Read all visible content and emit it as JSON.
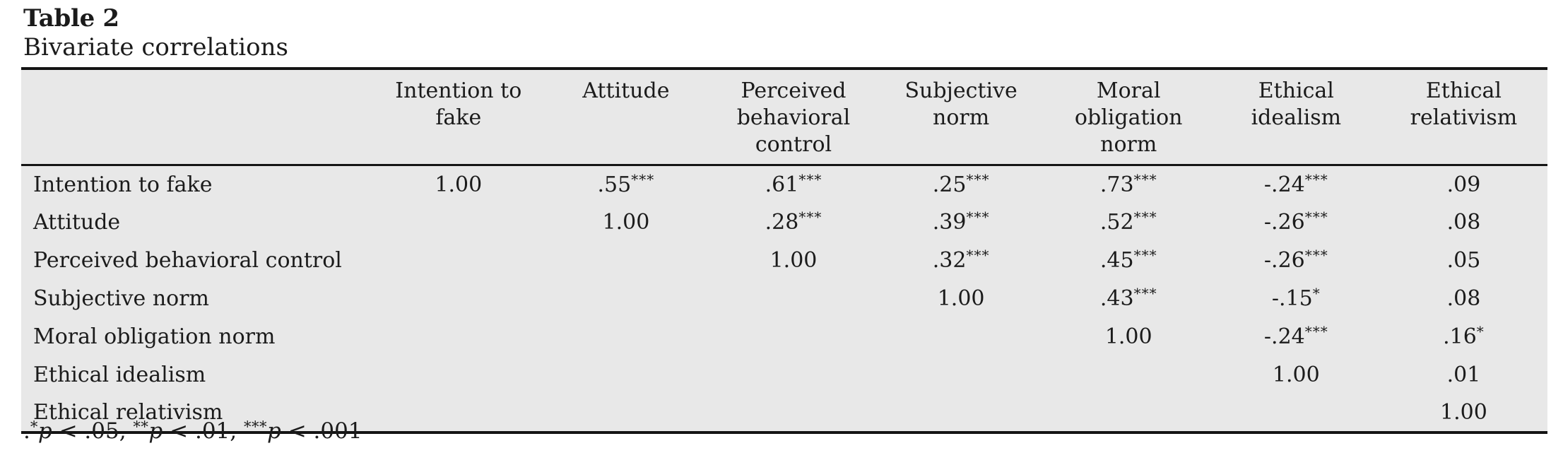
{
  "page": {
    "title": "Table 2",
    "subtitle": "Bivariate correlations"
  },
  "table": {
    "columns": [
      "",
      "Intention to fake",
      "Attitude",
      "Perceived behavioral control",
      "Subjective norm",
      "Moral obligation norm",
      "Ethical idealism",
      "Ethical relativism"
    ],
    "rows": [
      {
        "label": "Intention to fake",
        "values": [
          "1.00",
          ".55***",
          ".61***",
          ".25***",
          ".73***",
          "-.24***",
          ".09"
        ]
      },
      {
        "label": "Attitude",
        "values": [
          "",
          "1.00",
          ".28***",
          ".39***",
          ".52***",
          "-.26***",
          ".08"
        ]
      },
      {
        "label": "Perceived behavioral control",
        "values": [
          "",
          "",
          "1.00",
          ".32***",
          ".45***",
          "-.26***",
          ".05"
        ]
      },
      {
        "label": "Subjective norm",
        "values": [
          "",
          "",
          "",
          "1.00",
          ".43***",
          "-.15*",
          ".08"
        ]
      },
      {
        "label": "Moral obligation norm",
        "values": [
          "",
          "",
          "",
          "",
          "1.00",
          "-.24***",
          ".16*"
        ]
      },
      {
        "label": "Ethical idealism",
        "values": [
          "",
          "",
          "",
          "",
          "",
          "1.00",
          ".01"
        ]
      },
      {
        "label": "Ethical relativism",
        "values": [
          "",
          "",
          "",
          "",
          "",
          "",
          "1.00"
        ]
      }
    ]
  },
  "footnote": {
    "prefix": ".",
    "p_label": "p",
    "parts": [
      {
        "stars": "*",
        "rest": " < .05, "
      },
      {
        "stars": "**",
        "rest": " < .01, "
      },
      {
        "stars": "***",
        "rest": " < .001"
      }
    ]
  },
  "colors": {
    "table_background": "#e8e8e8",
    "text": "#1b1b1b",
    "border": "#141414"
  }
}
